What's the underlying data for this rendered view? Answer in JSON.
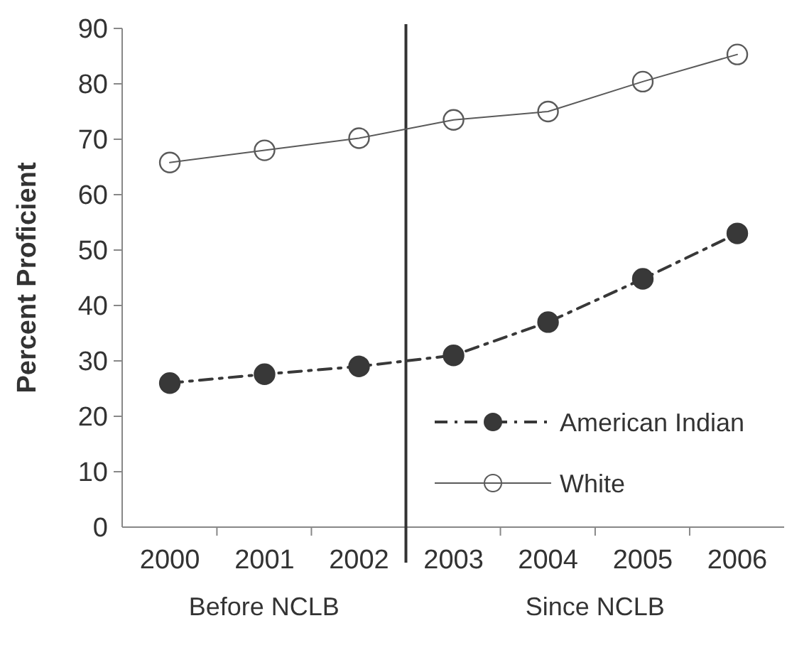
{
  "chart_data": {
    "type": "line",
    "ylabel": "Percent Proficient",
    "x": [
      "2000",
      "2001",
      "2002",
      "2003",
      "2004",
      "2005",
      "2006"
    ],
    "series": [
      {
        "name": "American Indian",
        "color": "#383838",
        "values": [
          26,
          27.6,
          29,
          31,
          37,
          44.8,
          53
        ],
        "line_style": "dashed",
        "marker": "circle"
      },
      {
        "name": "White",
        "color": "#5a5a5a",
        "values": [
          65.8,
          68,
          70.2,
          73.5,
          75,
          80.4,
          85.3
        ],
        "line_style": "solid",
        "marker": "circle"
      }
    ],
    "xlim": [
      "1999-07-01",
      "2006-07-01"
    ],
    "xticks": [
      "2000",
      "2001",
      "2002",
      "2003",
      "2004",
      "2005",
      "2006",
      {
        "value": "2000-07-01",
        "label": null
      },
      {
        "value": "2001-07-01",
        "label": null
      },
      {
        "value": "2003-07-01",
        "label": null
      },
      {
        "value": "2004-07-01",
        "label": null
      },
      {
        "value": "2005-07-01",
        "label": null
      }
    ],
    "ylim": [
      0,
      90
    ],
    "yticks": [
      0,
      10,
      20,
      30,
      40,
      50,
      60,
      70,
      80,
      90
    ],
    "ref_lines": [
      {
        "axis": "x",
        "value": "2002-07-01",
        "label": null,
        "color": "#333333"
      }
    ],
    "annotations": [
      "Before NCLB",
      "Since NCLB"
    ],
    "legend": "bottom right",
    "grid": false
  }
}
